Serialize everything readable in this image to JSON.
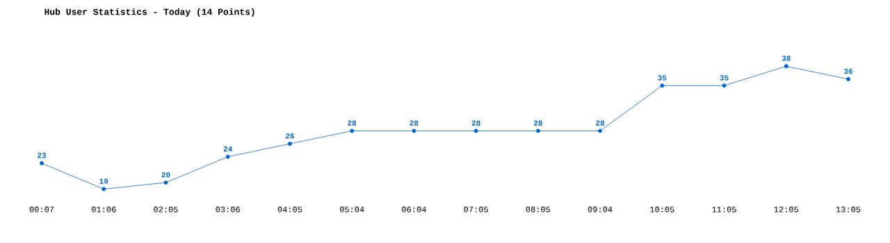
{
  "chart_data": {
    "type": "line",
    "title": "Hub User Statistics - Today (14 Points)",
    "categories": [
      "00:07",
      "01:06",
      "02:05",
      "03:06",
      "04:05",
      "05:04",
      "06:04",
      "07:05",
      "08:05",
      "09:04",
      "10:05",
      "11:05",
      "12:05",
      "13:05"
    ],
    "values": [
      23,
      19,
      20,
      24,
      26,
      28,
      28,
      28,
      28,
      28,
      35,
      35,
      38,
      36
    ],
    "color": "#0066cc",
    "marker": "circle",
    "line_style": "solid",
    "data_labels": true
  }
}
